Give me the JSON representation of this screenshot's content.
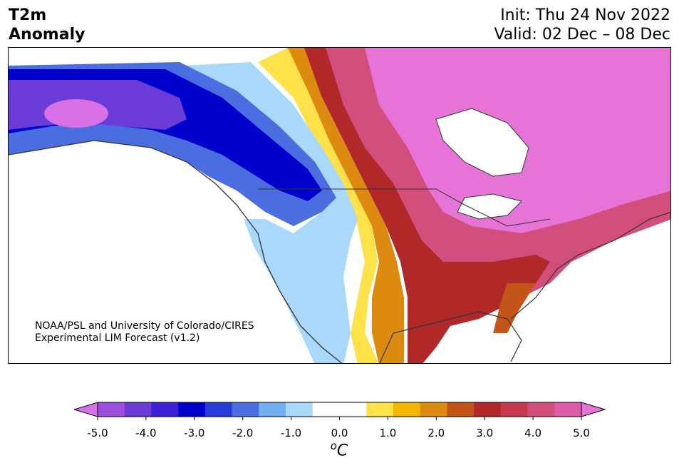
{
  "header": {
    "title_line1": "T2m",
    "title_line2": "Anomaly",
    "init": "Init: Thu 24 Nov 2022",
    "valid": "Valid: 02 Dec – 08 Dec"
  },
  "credit": {
    "line1": "NOAA/PSL and University of Colorado/CIRES",
    "line2": "Experimental LIM Forecast (v1.2)"
  },
  "colorbar": {
    "ticks": [
      "-5.0",
      "-4.0",
      "-3.0",
      "-2.0",
      "-1.0",
      "0.0",
      "1.0",
      "2.0",
      "3.0",
      "4.0",
      "5.0"
    ],
    "unit_main": "C",
    "unit_sup": "o",
    "colors": [
      "#d870e6",
      "#9b4fdc",
      "#6a3bd6",
      "#3d1fd4",
      "#0000cc",
      "#2a3bdc",
      "#4a6ee0",
      "#72aef0",
      "#a9d8fb",
      "#ffffff",
      "#ffffff",
      "#ffe14a",
      "#f2b600",
      "#dc8a10",
      "#c45518",
      "#b02828",
      "#c8384e",
      "#d24e7d",
      "#de5ca8",
      "#e674d6"
    ]
  }
}
